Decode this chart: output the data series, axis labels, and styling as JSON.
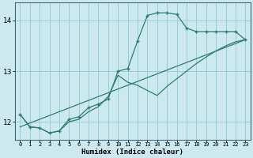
{
  "xlabel": "Humidex (Indice chaleur)",
  "background_color": "#cce9f0",
  "grid_color": "#99ccd9",
  "line_color": "#2d7d6e",
  "xlim": [
    -0.5,
    23.5
  ],
  "ylim": [
    11.65,
    14.35
  ],
  "yticks": [
    12,
    13,
    14
  ],
  "xticks": [
    0,
    1,
    2,
    3,
    4,
    5,
    6,
    7,
    8,
    9,
    10,
    11,
    12,
    13,
    14,
    15,
    16,
    17,
    18,
    19,
    20,
    21,
    22,
    23
  ],
  "lines": [
    {
      "x": [
        0,
        1,
        2,
        3,
        4,
        5,
        6,
        7,
        8,
        9,
        10,
        11,
        12,
        13,
        14,
        15,
        16,
        17,
        18,
        19,
        20,
        21,
        22,
        23
      ],
      "y": [
        12.15,
        11.9,
        11.88,
        11.78,
        11.82,
        12.05,
        12.1,
        12.28,
        12.35,
        12.45,
        13.0,
        13.05,
        13.6,
        14.1,
        14.15,
        14.15,
        14.12,
        13.85,
        13.78,
        13.78,
        13.78,
        13.78,
        13.78,
        13.62
      ],
      "marker": true
    },
    {
      "x": [
        0,
        23
      ],
      "y": [
        11.9,
        13.62
      ],
      "marker": false
    },
    {
      "x": [
        0,
        1,
        2,
        3,
        4,
        5,
        6,
        7,
        8,
        9,
        10,
        11,
        12,
        13,
        14,
        15,
        16,
        17,
        18,
        19,
        20,
        21,
        22,
        23
      ],
      "y": [
        12.15,
        11.9,
        11.88,
        11.78,
        11.82,
        12.0,
        12.05,
        12.2,
        12.3,
        12.5,
        12.92,
        12.78,
        12.72,
        12.62,
        12.52,
        12.7,
        12.85,
        13.0,
        13.15,
        13.28,
        13.4,
        13.5,
        13.58,
        13.62
      ],
      "marker": false
    }
  ]
}
